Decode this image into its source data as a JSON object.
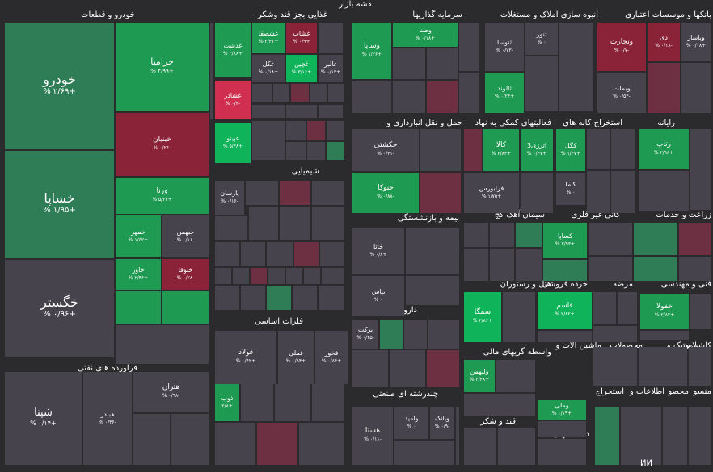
{
  "chart_data": {
    "type": "treemap",
    "title": "نقشه بازار",
    "colors": {
      "up_strong": "#0fb35a",
      "up_mid": "#1f9a52",
      "up_soft": "#2e7d57",
      "neutral": "#46434c",
      "down_soft": "#6d3043",
      "down_mid": "#8a2338",
      "down_strong": "#d12f4f"
    },
    "sectors": [
      {
        "name": "خودرو و قطعات"
      },
      {
        "name": "غذایی بجز قند وشکر"
      },
      {
        "name": "سرمایه گذاریها"
      },
      {
        "name": "انبوه سازی املاک و مستغلات"
      },
      {
        "name": "بانکها و موسسات اعتباری"
      },
      {
        "name": "حمل و نقل انبارداری و"
      },
      {
        "name": "فعالیتهای کمکی به نهاد"
      },
      {
        "name": "استخراج کانه های"
      },
      {
        "name": "رایانه"
      },
      {
        "name": "شیمیایی"
      },
      {
        "name": "بیمه و بازنشستگی"
      },
      {
        "name": "سیمان آهک گچ"
      },
      {
        "name": "کانی غیر فلزی"
      },
      {
        "name": "زراعت و خدمات"
      },
      {
        "name": "هتل و رستوران"
      },
      {
        "name": "خرده فروشی"
      },
      {
        "name": "مرضه"
      },
      {
        "name": "فنی و مهندسی"
      },
      {
        "name": "فلزات اساسی"
      },
      {
        "name": "دارویی"
      },
      {
        "name": "واسطه گریهای مالی"
      },
      {
        "name": "ماشین آلات و"
      },
      {
        "name": "محصولات"
      },
      {
        "name": "لاستیک و"
      },
      {
        "name": "کاشی و"
      },
      {
        "name": "فرآورده های نفتی"
      },
      {
        "name": "چندرشته ای صنعتی"
      },
      {
        "name": "قند و شکر"
      },
      {
        "name": "دستگاههای"
      },
      {
        "name": "استخراج"
      },
      {
        "name": "اطلاعات و"
      },
      {
        "name": "محصو"
      },
      {
        "name": "منسو"
      }
    ],
    "symbols": [
      {
        "name": "خودرو",
        "change": "+۲/۶۹ %",
        "color": "up_soft"
      },
      {
        "name": "خساپا",
        "change": "+۱/۹۵ %",
        "color": "up_soft"
      },
      {
        "name": "خگستر",
        "change": "+۰/۹۶ %",
        "color": "neutral"
      },
      {
        "name": "خزامیا",
        "change": "+۴/۹۹ %",
        "color": "up_mid"
      },
      {
        "name": "خبنیان",
        "change": "-۰/۲۶ %",
        "color": "down_mid"
      },
      {
        "name": "ورنا",
        "change": "+۵/۲۲ %",
        "color": "up_mid"
      },
      {
        "name": "خمهر",
        "change": "+۱/۶۲ %",
        "color": "up_mid"
      },
      {
        "name": "خبهمن",
        "change": "-۰/۱۱ %",
        "color": "neutral"
      },
      {
        "name": "خاور",
        "change": "+۲/۴۶ %",
        "color": "up_mid"
      },
      {
        "name": "ختوقا",
        "change": "-۰/۲۸ %",
        "color": "down_mid"
      },
      {
        "name": "شپنا",
        "change": "+۰/۱۴ %",
        "color": "neutral"
      },
      {
        "name": "هبندر",
        "change": "-۰/۴۶ %",
        "color": "neutral"
      },
      {
        "name": "هتران",
        "change": "-۰/۹۸ %",
        "color": "neutral"
      },
      {
        "name": "غدشت",
        "change": "+۲/۸۸ %",
        "color": "up_mid"
      },
      {
        "name": "غشصفا",
        "change": "+۲/۳۱ %",
        "color": "up_mid"
      },
      {
        "name": "غشاب",
        "change": "+۰/۹ %",
        "color": "down_mid"
      },
      {
        "name": "غگل",
        "change": "+۰/۱۸ %",
        "color": "neutral"
      },
      {
        "name": "غچین",
        "change": "+۳/۱۶ %",
        "color": "up_strong"
      },
      {
        "name": "غالبر",
        "change": "+۰/۱۳ %",
        "color": "neutral"
      },
      {
        "name": "غشاذر",
        "change": "-۰/۴ %",
        "color": "down_strong"
      },
      {
        "name": "غپینو",
        "change": "+۵/۳۸ %",
        "color": "up_strong"
      },
      {
        "name": "وصنا",
        "change": "+۰/۱۸ %",
        "color": "up_mid"
      },
      {
        "name": "وساپا",
        "change": "+۱/۲۶ %",
        "color": "up_mid"
      },
      {
        "name": "ثنوسا",
        "change": "-۰/۷۳ %",
        "color": "neutral"
      },
      {
        "name": "ثنور",
        "change": "۰ %",
        "color": "neutral"
      },
      {
        "name": "ثالوند",
        "change": "+۰/۲۴ %",
        "color": "up_mid"
      },
      {
        "name": "وتجارت",
        "change": "-۰/۷ %",
        "color": "down_mid"
      },
      {
        "name": "دی",
        "change": "-۰/۱۸ %",
        "color": "down_mid"
      },
      {
        "name": "وپاسار",
        "change": "+۰/۱۸ %",
        "color": "neutral"
      },
      {
        "name": "وبملت",
        "change": "-۰/۵۴ %",
        "color": "neutral"
      },
      {
        "name": "حکشتی",
        "change": "-۰/۳۱ %",
        "color": "neutral"
      },
      {
        "name": "حتوکا",
        "change": "-۰/۸۸ %",
        "color": "up_mid"
      },
      {
        "name": "کالا",
        "change": "+۲/۸۴ %",
        "color": "up_mid"
      },
      {
        "name": "اترژی3",
        "change": "+۰/۴۷ %",
        "color": "up_mid"
      },
      {
        "name": "فرابورس",
        "change": "+۱/۷۵ %",
        "color": "neutral"
      },
      {
        "name": "کگل",
        "change": "+۱/۴۷ %",
        "color": "up_mid"
      },
      {
        "name": "کاما",
        "change": "۰ %",
        "color": "neutral"
      },
      {
        "name": "رتاپ",
        "change": "+۲/۹۸ %",
        "color": "up_mid"
      },
      {
        "name": "پارسان",
        "change": "-۰/۱۶ %",
        "color": "neutral"
      },
      {
        "name": "خاتا",
        "change": "+۰/۸ %",
        "color": "neutral"
      },
      {
        "name": "بپاس",
        "change": "۰ %",
        "color": "neutral"
      },
      {
        "name": "کساپا",
        "change": "+۲/۹۳ %",
        "color": "up_mid"
      },
      {
        "name": "سمگا",
        "change": "+۲/۸۶ %",
        "color": "up_strong"
      },
      {
        "name": "قاسم",
        "change": "+۲/۸۲ %",
        "color": "up_strong"
      },
      {
        "name": "خفولا",
        "change": "+۲/۸۲ %",
        "color": "up_mid"
      },
      {
        "name": "فولاد",
        "change": "+۰/۴۲ %",
        "color": "neutral"
      },
      {
        "name": "فملی",
        "change": "+۰/۸۴ %",
        "color": "neutral"
      },
      {
        "name": "فخوز",
        "change": "+۰/۸۴ %",
        "color": "neutral"
      },
      {
        "name": "ذوب",
        "change": "+۲/۸",
        "color": "up_mid"
      },
      {
        "name": "برکت",
        "change": "-۰/۴۵ %",
        "color": "neutral"
      },
      {
        "name": "ولبهمن",
        "change": "+۲/۴۸ %",
        "color": "up_mid"
      },
      {
        "name": "هستا",
        "change": "-۰/۱۱ %",
        "color": "neutral"
      },
      {
        "name": "وامید",
        "change": "۰ %",
        "color": "neutral"
      },
      {
        "name": "وبانک",
        "change": "-۰/۹ %",
        "color": "neutral"
      },
      {
        "name": "وملی",
        "change": "+۰/۱۹ %",
        "color": "up_mid"
      }
    ]
  },
  "watermark": "ⵍⵍ"
}
